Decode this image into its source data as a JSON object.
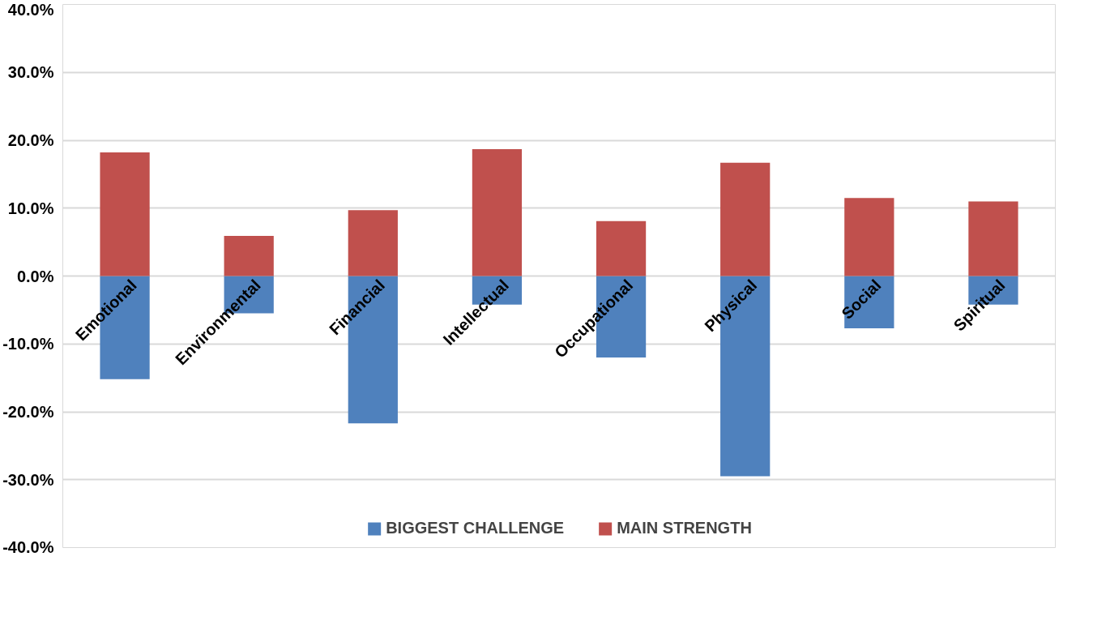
{
  "chart_data": {
    "type": "bar",
    "stacked": true,
    "categories": [
      "Emotional",
      "Environmental",
      "Financial",
      "Intellectual",
      "Occupational",
      "Physical",
      "Social",
      "Spiritual"
    ],
    "series": [
      {
        "name": "BIGGEST CHALLENGE",
        "color": "#4f81bd",
        "values": [
          -15.2,
          -5.5,
          -21.7,
          -4.2,
          -12.0,
          -29.5,
          -7.7,
          -4.2
        ]
      },
      {
        "name": "MAIN STRENGTH",
        "color": "#c0504d",
        "values": [
          18.2,
          5.9,
          9.7,
          18.7,
          8.1,
          16.7,
          11.5,
          11.0
        ]
      }
    ],
    "ylim": [
      -40,
      40
    ],
    "yticks": [
      {
        "value": -40,
        "label": "-40.0%"
      },
      {
        "value": -30,
        "label": "-30.0%"
      },
      {
        "value": -20,
        "label": "-20.0%"
      },
      {
        "value": -10,
        "label": "-10.0%"
      },
      {
        "value": 0,
        "label": "0.0%"
      },
      {
        "value": 10,
        "label": "10.0%"
      },
      {
        "value": 20,
        "label": "20.0%"
      },
      {
        "value": 30,
        "label": "30.0%"
      },
      {
        "value": 40,
        "label": "40.0%"
      }
    ],
    "grid": "y",
    "legend": "bottom"
  }
}
